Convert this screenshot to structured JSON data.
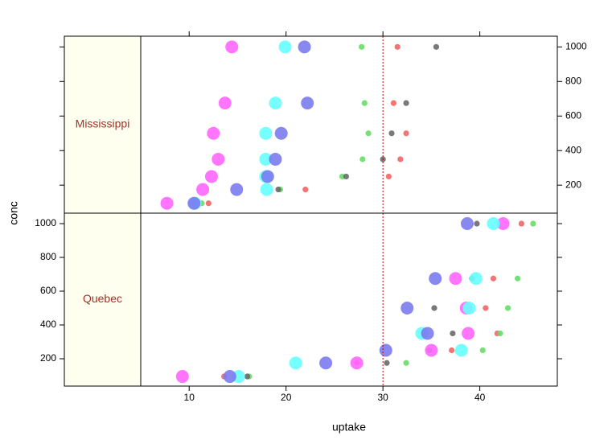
{
  "chart_data": {
    "type": "scatter",
    "x_label": "uptake",
    "y_label": "conc",
    "xlim": [
      5.0,
      48.0
    ],
    "ylim": [
      38,
      1062
    ],
    "xticks": [
      10,
      20,
      30,
      40
    ],
    "yticks": [
      200,
      400,
      600,
      800,
      1000
    ],
    "reference_line": {
      "x": 30,
      "color": "#cc0000"
    },
    "y": [
      95,
      175,
      250,
      350,
      500,
      675,
      1000
    ],
    "panels": [
      {
        "strip": "Mississippi",
        "series": [
          {
            "color": "#f06666",
            "marker": "small",
            "values": [
              12.0,
              22.0,
              30.6,
              31.8,
              32.4,
              31.1,
              31.5
            ]
          },
          {
            "color": "#66dd66",
            "marker": "small",
            "values": [
              11.3,
              19.4,
              25.8,
              27.9,
              28.5,
              28.1,
              27.8
            ]
          },
          {
            "color": "#6a6a6a",
            "marker": "small",
            "values": [
              10.6,
              19.2,
              26.2,
              30.0,
              30.9,
              32.4,
              35.5
            ]
          },
          {
            "color": "#ff66ff",
            "marker": "large",
            "values": [
              7.7,
              11.4,
              12.3,
              13.0,
              12.5,
              13.7,
              14.4
            ]
          },
          {
            "color": "#66ffff",
            "marker": "large",
            "values": [
              10.6,
              18.0,
              17.9,
              17.9,
              17.9,
              18.9,
              19.9
            ]
          },
          {
            "color": "#7b7bf0",
            "marker": "large",
            "values": [
              10.5,
              14.9,
              18.1,
              18.9,
              19.5,
              22.2,
              21.9
            ]
          }
        ]
      },
      {
        "strip": "Quebec",
        "series": [
          {
            "color": "#f06666",
            "marker": "small",
            "values": [
              13.6,
              27.3,
              37.1,
              41.8,
              40.6,
              41.4,
              44.3
            ]
          },
          {
            "color": "#66dd66",
            "marker": "small",
            "values": [
              16.2,
              32.4,
              40.3,
              42.1,
              42.9,
              43.9,
              45.5
            ]
          },
          {
            "color": "#6a6a6a",
            "marker": "small",
            "values": [
              16.0,
              30.4,
              34.8,
              37.2,
              35.3,
              39.2,
              39.7
            ]
          },
          {
            "color": "#ff66ff",
            "marker": "large",
            "values": [
              9.3,
              27.3,
              35.0,
              38.8,
              38.6,
              37.5,
              42.4
            ]
          },
          {
            "color": "#66ffff",
            "marker": "large",
            "values": [
              15.1,
              21.0,
              38.1,
              34.0,
              38.9,
              39.6,
              41.4
            ]
          },
          {
            "color": "#7b7bf0",
            "marker": "large",
            "values": [
              14.2,
              24.1,
              30.3,
              34.6,
              32.5,
              35.4,
              38.7
            ]
          }
        ]
      }
    ]
  }
}
